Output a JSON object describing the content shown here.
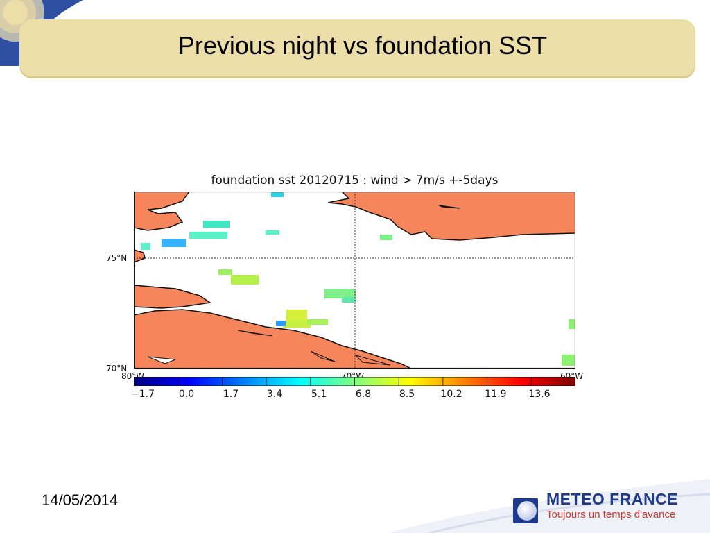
{
  "slide": {
    "title": "Previous night vs foundation SST",
    "footer_date": "14/05/2014"
  },
  "figure": {
    "title": "foundation sst 20120715 : wind > 7m/s +-5days",
    "lat_labels": [
      "75°N",
      "70°N"
    ],
    "lon_labels": [
      "80°W",
      "70°W",
      "60°W"
    ],
    "colorbar": {
      "ticks": [
        "−1.7",
        "0.0",
        "1.7",
        "3.4",
        "5.1",
        "6.8",
        "8.5",
        "10.2",
        "11.9",
        "13.6"
      ],
      "range": [
        -1.7,
        15.3
      ],
      "colormap": "jet"
    },
    "land_color": "#f5855a"
  },
  "logo": {
    "name": "METEO FRANCE",
    "tagline": "Toujours un temps d'avance"
  }
}
